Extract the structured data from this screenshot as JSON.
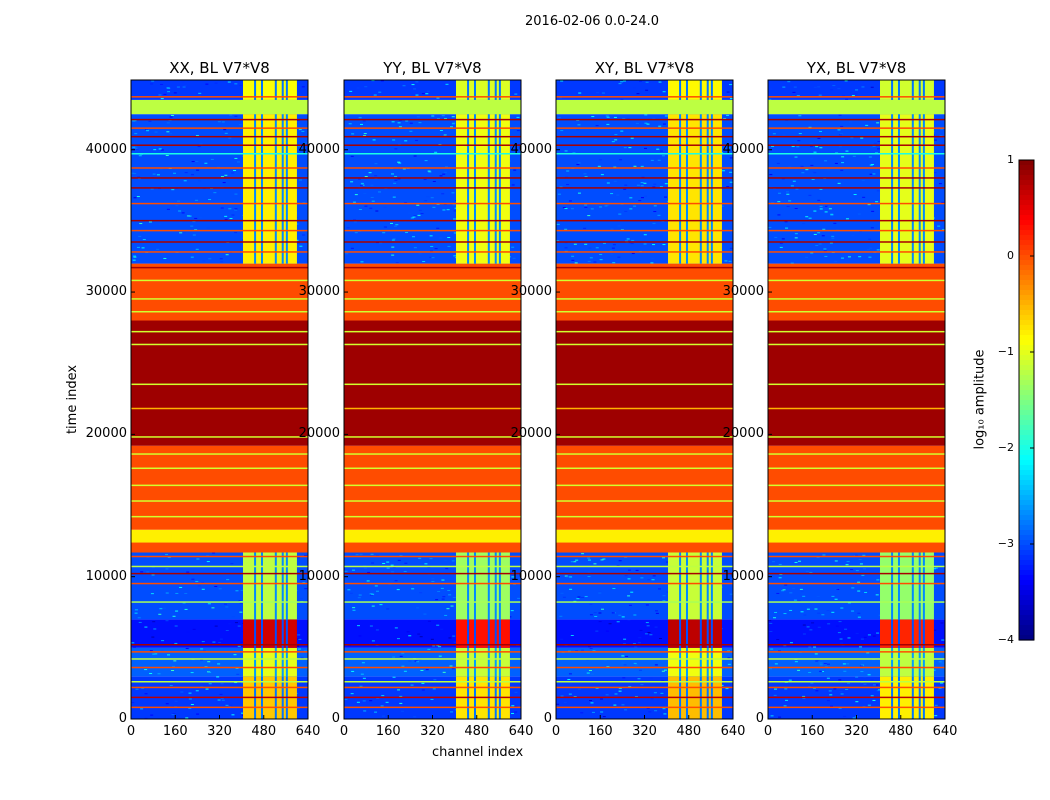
{
  "chart_data": {
    "type": "heatmap",
    "suptitle": "2016-02-06 0.0-24.0",
    "xlabel": "channel index",
    "ylabel": "time index",
    "xlim": [
      0,
      640
    ],
    "ylim": [
      0,
      44900
    ],
    "xticks": [
      "0",
      "160",
      "320",
      "480",
      "640"
    ],
    "yticks": [
      "0",
      "10000",
      "20000",
      "30000",
      "40000"
    ],
    "xtick_values": [
      0,
      160,
      320,
      480,
      640
    ],
    "ytick_values": [
      0,
      10000,
      20000,
      30000,
      40000
    ],
    "panels": [
      {
        "title": "XX, BL V7*V8",
        "signal_offset": 0
      },
      {
        "title": "YY, BL V7*V8",
        "signal_offset": -0.3
      },
      {
        "title": "XY, BL V7*V8",
        "signal_offset": 0.1
      },
      {
        "title": "YX, BL V7*V8",
        "signal_offset": -0.4
      }
    ],
    "signal_channels": [
      405,
      600
    ],
    "signal_gaps": [
      445,
      470,
      520,
      545,
      560
    ],
    "bands": [
      {
        "t": [
          0,
          3000
        ],
        "bg": -3.1,
        "sig": -0.6
      },
      {
        "t": [
          3000,
          5000
        ],
        "bg": -2.9,
        "sig": -1.0
      },
      {
        "t": [
          5000,
          7000
        ],
        "bg": -3.3,
        "sig": 0.6
      },
      {
        "t": [
          7000,
          11700
        ],
        "bg": -3.0,
        "sig": -1.2
      },
      {
        "t": [
          11700,
          12400
        ],
        "bg": 0.0,
        "sig": 0.0
      },
      {
        "t": [
          12400,
          13300
        ],
        "bg": -0.8,
        "sig": -0.8
      },
      {
        "t": [
          13300,
          19200
        ],
        "bg": 0.0,
        "sig": 0.0
      },
      {
        "t": [
          19200,
          28000
        ],
        "bg": 0.85,
        "sig": 0.85
      },
      {
        "t": [
          28000,
          32000
        ],
        "bg": 0.0,
        "sig": 0.0
      },
      {
        "t": [
          32000,
          42500
        ],
        "bg": -3.0,
        "sig": -0.8
      },
      {
        "t": [
          42500,
          43500
        ],
        "bg": -1.2,
        "sig": -1.2
      },
      {
        "t": [
          43500,
          44900
        ],
        "bg": -3.1,
        "sig": -0.9
      }
    ],
    "lines": [
      {
        "t": 800,
        "v": 0.0
      },
      {
        "t": 1500,
        "v": 0.7
      },
      {
        "t": 2200,
        "v": 0.0
      },
      {
        "t": 2600,
        "v": -1.2
      },
      {
        "t": 3600,
        "v": 0.0
      },
      {
        "t": 4200,
        "v": -1.2
      },
      {
        "t": 4700,
        "v": 0.0
      },
      {
        "t": 5200,
        "v": 0.8
      },
      {
        "t": 8200,
        "v": -1.3
      },
      {
        "t": 9500,
        "v": 0.0
      },
      {
        "t": 10200,
        "v": 0.8
      },
      {
        "t": 10700,
        "v": -1.2
      },
      {
        "t": 11400,
        "v": 0.0
      },
      {
        "t": 14200,
        "v": -1.1
      },
      {
        "t": 15300,
        "v": -1.1
      },
      {
        "t": 16400,
        "v": -1.1
      },
      {
        "t": 17600,
        "v": -1.1
      },
      {
        "t": 18600,
        "v": -1.1
      },
      {
        "t": 19800,
        "v": -1.1
      },
      {
        "t": 21800,
        "v": -0.5
      },
      {
        "t": 23500,
        "v": -1.1
      },
      {
        "t": 26300,
        "v": -1.1
      },
      {
        "t": 27200,
        "v": -1.1
      },
      {
        "t": 28600,
        "v": -1.1
      },
      {
        "t": 29500,
        "v": -1.1
      },
      {
        "t": 30800,
        "v": -1.1
      },
      {
        "t": 31700,
        "v": 0.8
      },
      {
        "t": 32800,
        "v": 0.0
      },
      {
        "t": 33500,
        "v": 0.8
      },
      {
        "t": 34300,
        "v": 0.0
      },
      {
        "t": 35000,
        "v": 0.8
      },
      {
        "t": 36200,
        "v": 0.0
      },
      {
        "t": 37300,
        "v": 0.8
      },
      {
        "t": 38000,
        "v": 0.8
      },
      {
        "t": 38700,
        "v": 0.0
      },
      {
        "t": 39700,
        "v": -2.0
      },
      {
        "t": 40300,
        "v": 0.8
      },
      {
        "t": 40900,
        "v": 0.8
      },
      {
        "t": 41500,
        "v": 0.0
      },
      {
        "t": 42100,
        "v": 0.8
      },
      {
        "t": 43700,
        "v": 0.0
      }
    ],
    "colorbar": {
      "label": "log₁₀ amplitude",
      "range": [
        -4,
        1
      ],
      "ticks": [
        "1",
        "0",
        "−1",
        "−2",
        "−3",
        "−4"
      ],
      "tick_values": [
        1,
        0,
        -1,
        -2,
        -3,
        -4
      ]
    }
  }
}
